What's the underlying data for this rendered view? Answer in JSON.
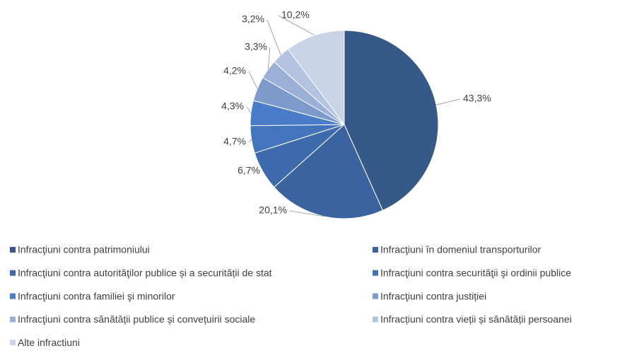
{
  "chart_data": {
    "type": "pie",
    "categories": [
      "Infracţiuni contra patrimoniului",
      "Infracţiuni în domeniul transporturilor",
      "Infracţiuni contra autorităţilor publice și a securității de stat",
      "Infracţiuni contra securităţii şi ordinii publice",
      "Infracţiuni contra familiei şi minorilor",
      "Infracţiuni contra justiției",
      "Infracţiuni contra sănătății publice și convețuirii sociale",
      "Infracțiuni contra vieții și sănătății persoanei",
      "Alte infractiuni"
    ],
    "values": [
      43.3,
      20.1,
      6.7,
      4.7,
      4.3,
      4.2,
      3.3,
      3.2,
      10.2
    ],
    "value_labels": [
      "43,3%",
      "20,1%",
      "6,7%",
      "4,7%",
      "4,3%",
      "4,2%",
      "3,3%",
      "3,2%",
      "10,2%"
    ],
    "colors": [
      "#355a8a",
      "#3a63a0",
      "#3e6bae",
      "#4474bb",
      "#4a7dc9",
      "#7c9acb",
      "#9bb0d6",
      "#b3c3e0",
      "#c9d4e8"
    ],
    "legend": "bottom"
  }
}
